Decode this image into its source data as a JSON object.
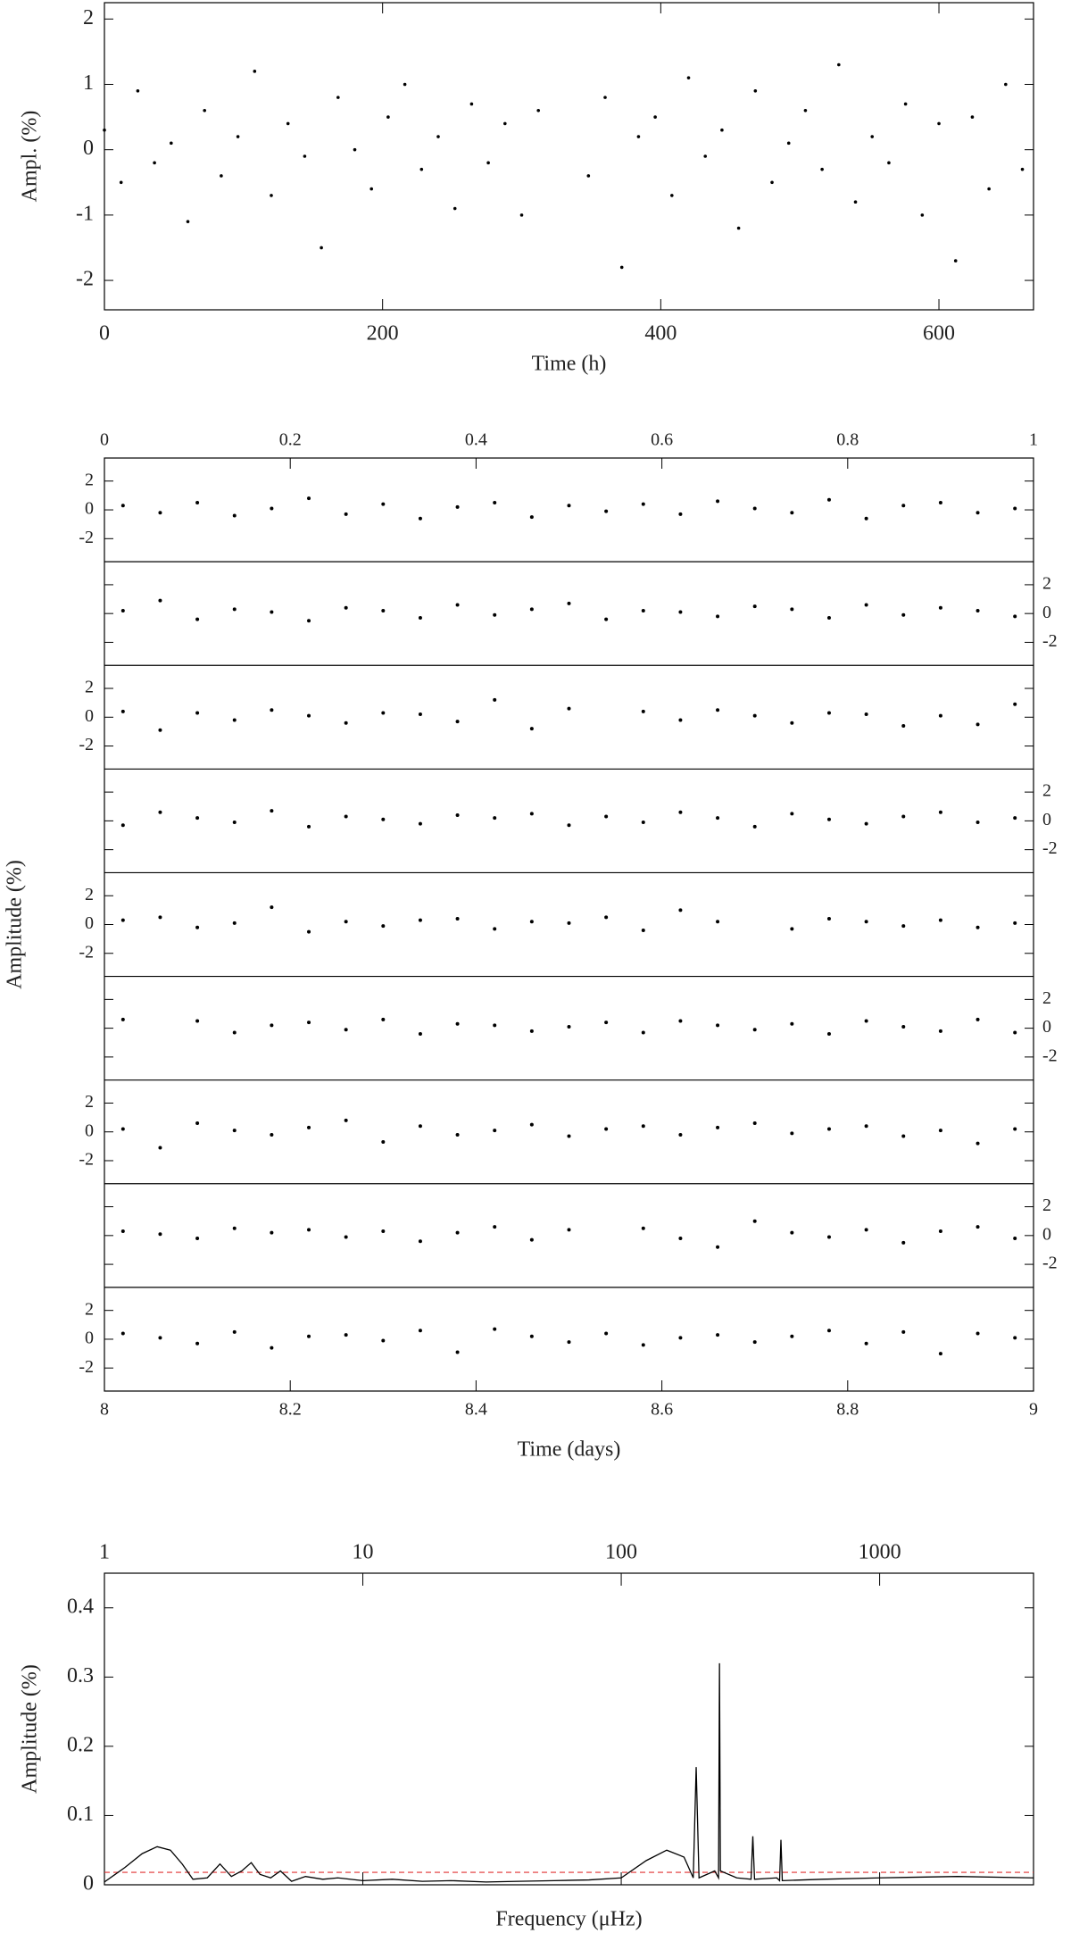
{
  "chart_data": [
    {
      "type": "scatter",
      "xlabel": "Time (h)",
      "ylabel": "Ampl. (%)",
      "color": "#000000",
      "xlim": [
        0,
        668
      ],
      "ylim": [
        -2.45,
        2.25
      ],
      "xticks": [
        0,
        200,
        400,
        600
      ],
      "yticks": [
        -2,
        -1,
        0,
        1,
        2
      ],
      "x": [
        0,
        12,
        24,
        36,
        48,
        60,
        72,
        84,
        96,
        108,
        120,
        132,
        144,
        156,
        168,
        180,
        192,
        204,
        216,
        228,
        240,
        252,
        264,
        276,
        288,
        300,
        312,
        348,
        360,
        372,
        384,
        396,
        408,
        420,
        432,
        444,
        456,
        468,
        480,
        492,
        504,
        516,
        528,
        540,
        552,
        564,
        576,
        588,
        600,
        612,
        624,
        636,
        648,
        660
      ],
      "values": [
        0.3,
        -0.5,
        0.9,
        -0.2,
        0.1,
        -1.1,
        0.6,
        -0.4,
        0.2,
        1.2,
        -0.7,
        0.4,
        -0.1,
        -1.5,
        0.8,
        0,
        -0.6,
        0.5,
        1.0,
        -0.3,
        0.2,
        -0.9,
        0.7,
        -0.2,
        0.4,
        -1.0,
        0.6,
        -0.4,
        0.8,
        -1.8,
        0.2,
        0.5,
        -0.7,
        1.1,
        -0.1,
        0.3,
        -1.2,
        0.9,
        -0.5,
        0.1,
        0.6,
        -0.3,
        1.3,
        -0.8,
        0.2,
        -0.2,
        0.7,
        -1.0,
        0.4,
        -1.7,
        0.5,
        -0.6,
        1.0,
        -0.3
      ]
    },
    {
      "type": "strips",
      "xlabel": "Time (days)",
      "ylabel": "Amplitude (%)",
      "color": "#000000",
      "xlim": [
        8,
        9
      ],
      "xticks": [
        8,
        8.2,
        8.4,
        8.6,
        8.8,
        9
      ],
      "x2lim": [
        0,
        1
      ],
      "x2ticks": [
        0,
        0.2,
        0.4,
        0.6,
        0.8,
        1
      ],
      "ylim": [
        -3.6,
        3.6
      ],
      "yticks": [
        -2,
        0,
        2
      ],
      "x": [
        0.02,
        0.06,
        0.1,
        0.14,
        0.18,
        0.22,
        0.26,
        0.3,
        0.34,
        0.38,
        0.42,
        0.46,
        0.5,
        0.54,
        0.58,
        0.62,
        0.66,
        0.7,
        0.74,
        0.78,
        0.82,
        0.86,
        0.9,
        0.94,
        0.98
      ],
      "series": [
        {
          "values": [
            0.3,
            -0.2,
            0.5,
            -0.4,
            0.1,
            0.8,
            -0.3,
            0.4,
            -0.6,
            0.2,
            0.5,
            -0.5,
            0.3,
            -0.1,
            0.4,
            -0.3,
            0.6,
            0.1,
            -0.2,
            0.7,
            -0.6,
            0.3,
            0.5,
            -0.2,
            0.1
          ]
        },
        {
          "values": [
            0.2,
            0.9,
            -0.4,
            0.3,
            0.1,
            -0.5,
            0.4,
            0.2,
            -0.3,
            0.6,
            -0.1,
            0.3,
            0.7,
            -0.4,
            0.2,
            0.1,
            -0.2,
            0.5,
            0.3,
            -0.3,
            0.6,
            -0.1,
            0.4,
            0.2,
            -0.2
          ]
        },
        {
          "values": [
            0.4,
            -0.9,
            0.3,
            -0.2,
            0.5,
            0.1,
            -0.4,
            0.3,
            0.2,
            -0.3,
            1.2,
            -0.8,
            0.6,
            null,
            0.4,
            -0.2,
            0.5,
            0.1,
            -0.4,
            0.3,
            0.2,
            -0.6,
            0.1,
            -0.5,
            0.9
          ]
        },
        {
          "values": [
            -0.3,
            0.6,
            0.2,
            -0.1,
            0.7,
            -0.4,
            0.3,
            0.1,
            -0.2,
            0.4,
            0.2,
            0.5,
            -0.3,
            0.3,
            -0.1,
            0.6,
            0.2,
            -0.4,
            0.5,
            0.1,
            -0.2,
            0.3,
            0.6,
            -0.1,
            0.2
          ]
        },
        {
          "values": [
            0.3,
            0.5,
            -0.2,
            0.1,
            1.2,
            -0.5,
            0.2,
            -0.1,
            0.3,
            0.4,
            -0.3,
            0.2,
            0.1,
            0.5,
            -0.4,
            1.0,
            0.2,
            null,
            -0.3,
            0.4,
            0.2,
            -0.1,
            0.3,
            -0.2,
            0.1
          ]
        },
        {
          "values": [
            0.6,
            null,
            0.5,
            -0.3,
            0.2,
            0.4,
            -0.1,
            0.6,
            -0.4,
            0.3,
            0.2,
            -0.2,
            0.1,
            0.4,
            -0.3,
            0.5,
            0.2,
            -0.1,
            0.3,
            -0.4,
            0.5,
            0.1,
            -0.2,
            0.6,
            -0.3
          ]
        },
        {
          "values": [
            0.2,
            -1.1,
            0.6,
            0.1,
            -0.2,
            0.3,
            0.8,
            -0.7,
            0.4,
            -0.2,
            0.1,
            0.5,
            -0.3,
            0.2,
            0.4,
            -0.2,
            0.3,
            0.6,
            -0.1,
            0.2,
            0.4,
            -0.3,
            0.1,
            -0.8,
            0.2
          ]
        },
        {
          "values": [
            0.3,
            0.1,
            -0.2,
            0.5,
            0.2,
            0.4,
            -0.1,
            0.3,
            -0.4,
            0.2,
            0.6,
            -0.3,
            0.4,
            null,
            0.5,
            -0.2,
            -0.8,
            1.0,
            0.2,
            -0.1,
            0.4,
            -0.5,
            0.3,
            0.6,
            -0.2
          ]
        },
        {
          "values": [
            0.4,
            0.1,
            -0.3,
            0.5,
            -0.6,
            0.2,
            0.3,
            -0.1,
            0.6,
            -0.9,
            0.7,
            0.2,
            -0.2,
            0.4,
            -0.4,
            0.1,
            0.3,
            -0.2,
            0.2,
            0.6,
            -0.3,
            0.5,
            -1.0,
            0.4,
            0.1
          ]
        }
      ]
    },
    {
      "type": "line",
      "xlabel": "Frequency (μHz)",
      "ylabel": "Amplitude (%)",
      "color": "#000000",
      "log_x": true,
      "xlim": [
        1,
        3940
      ],
      "ylim": [
        0,
        0.45
      ],
      "xticks": [
        1,
        10,
        100,
        1000
      ],
      "yticks": [
        0,
        0.1,
        0.2,
        0.3,
        0.4
      ],
      "threshold": 0.018,
      "threshold_color": "#e03030",
      "x": [
        1,
        1.2,
        1.4,
        1.6,
        1.8,
        2,
        2.2,
        2.5,
        2.8,
        3.1,
        3.4,
        3.7,
        4,
        4.4,
        4.8,
        5.3,
        6,
        7,
        8,
        10,
        13,
        17,
        22,
        30,
        40,
        55,
        75,
        100,
        125,
        150,
        175,
        190,
        195,
        200,
        230,
        238,
        240,
        242,
        280,
        318,
        323,
        328,
        400,
        410,
        415,
        420,
        600,
        1000,
        2000,
        3940
      ],
      "values": [
        0.004,
        0.025,
        0.045,
        0.055,
        0.05,
        0.03,
        0.008,
        0.01,
        0.03,
        0.012,
        0.02,
        0.032,
        0.015,
        0.01,
        0.02,
        0.005,
        0.012,
        0.008,
        0.01,
        0.006,
        0.008,
        0.005,
        0.006,
        0.004,
        0.005,
        0.006,
        0.007,
        0.01,
        0.035,
        0.05,
        0.04,
        0.01,
        0.17,
        0.01,
        0.02,
        0.01,
        0.32,
        0.02,
        0.01,
        0.008,
        0.07,
        0.008,
        0.01,
        0.006,
        0.065,
        0.006,
        0.008,
        0.01,
        0.012,
        0.01
      ]
    }
  ]
}
